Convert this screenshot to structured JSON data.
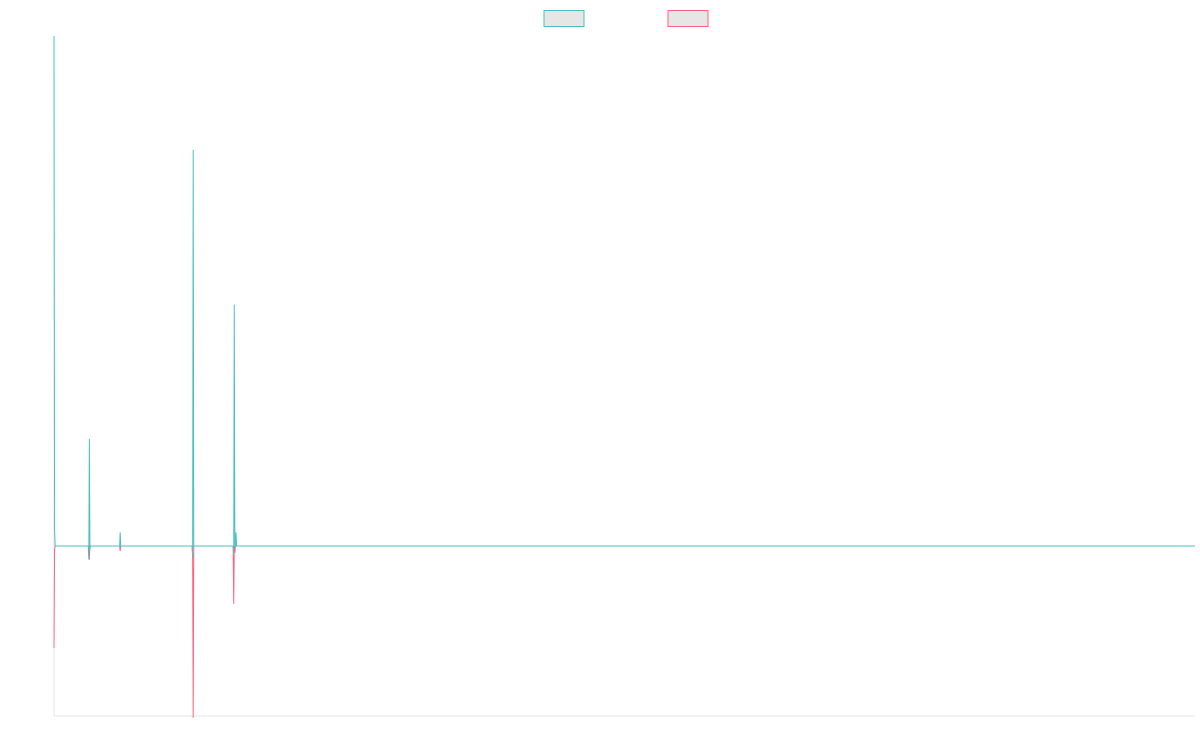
{
  "chart_data": {
    "type": "line",
    "title": "",
    "xlabel": "",
    "ylabel": "",
    "grid": false,
    "legend": "top-center",
    "x": [
      0,
      1,
      2,
      60,
      61,
      62,
      63,
      64,
      65,
      66,
      67,
      115,
      116,
      117,
      242,
      243,
      244,
      245,
      246,
      247,
      248,
      314,
      315,
      316,
      317,
      318,
      319,
      320,
      321,
      322
    ],
    "ylim": [
      -100,
      300
    ],
    "series": [
      {
        "name": "",
        "color": "#4bc0c0",
        "values": [
          300,
          10,
          0,
          0,
          -8,
          63,
          -2,
          0,
          0,
          0,
          0,
          0,
          8,
          0,
          0,
          -7,
          233,
          0,
          0,
          0,
          0,
          0,
          -5,
          142,
          0,
          0,
          8,
          0,
          0,
          0
        ]
      },
      {
        "name": "",
        "color": "#ff6384",
        "values": [
          -60,
          -2,
          0,
          0,
          0,
          -8,
          0,
          0,
          0,
          0,
          0,
          0,
          -3,
          0,
          0,
          -5,
          -101,
          0,
          0,
          0,
          0,
          0,
          -34,
          0,
          -4,
          0,
          0,
          0,
          0,
          0
        ]
      }
    ]
  }
}
